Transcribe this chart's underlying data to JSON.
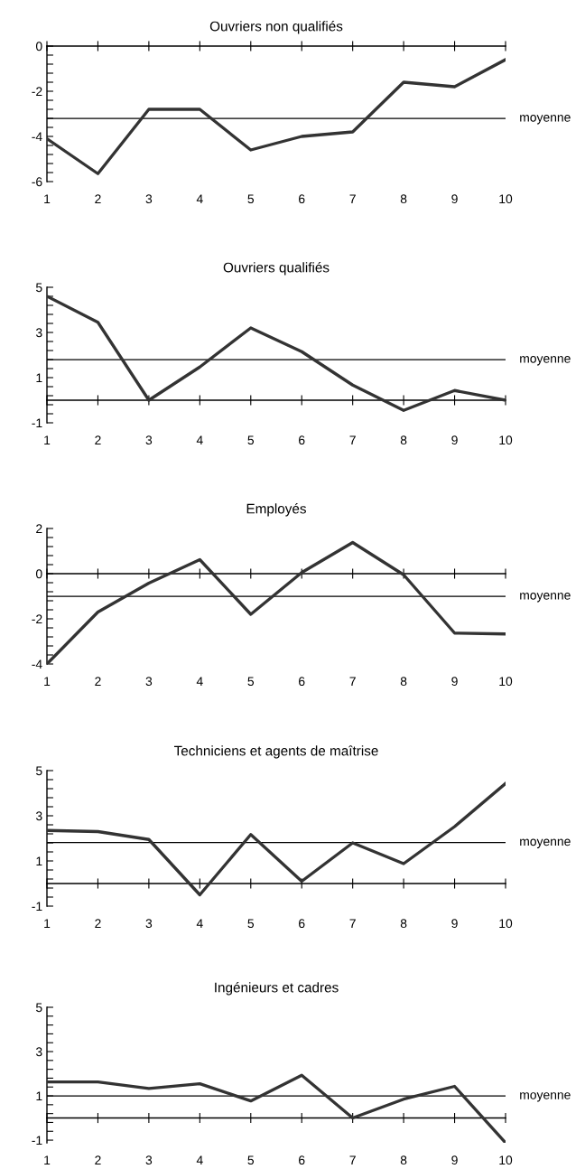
{
  "chart_data": [
    {
      "type": "line",
      "title": "Ouvriers non qualifiés",
      "x": [
        1,
        2,
        3,
        4,
        5,
        6,
        7,
        8,
        9,
        10
      ],
      "values": [
        -4.1,
        -5.65,
        -2.8,
        -2.8,
        -4.6,
        -4.0,
        -3.8,
        -1.6,
        -1.8,
        -0.6
      ],
      "color": "#333333",
      "xlim": [
        1,
        10
      ],
      "xticks": [
        1,
        2,
        3,
        4,
        5,
        6,
        7,
        8,
        9,
        10
      ],
      "ylim": [
        -6,
        0
      ],
      "yticks": [
        -6,
        {
          "value": -5.6,
          "label": null
        },
        {
          "value": -5.2,
          "label": null
        },
        {
          "value": -4.8,
          "label": null
        },
        {
          "value": -4.4,
          "label": null
        },
        -4,
        {
          "value": -3.6,
          "label": null
        },
        {
          "value": -3.2,
          "label": null
        },
        {
          "value": -2.8,
          "label": null
        },
        {
          "value": -2.4,
          "label": null
        },
        -2,
        {
          "value": -1.6,
          "label": null
        },
        {
          "value": -1.2,
          "label": null
        },
        {
          "value": -0.8,
          "label": null
        },
        {
          "value": -0.4,
          "label": null
        },
        0
      ],
      "ref_lines": [
        {
          "axis": "y",
          "value": -3.2,
          "label": "moyenne",
          "color": "#000000"
        }
      ]
    },
    {
      "type": "line",
      "title": "Ouvriers qualifiés",
      "x": [
        1,
        2,
        3,
        4,
        5,
        6,
        7,
        8,
        9,
        10
      ],
      "values": [
        4.6,
        3.45,
        0,
        1.47,
        3.2,
        2.15,
        0.67,
        -0.45,
        0.43,
        0
      ],
      "color": "#333333",
      "xlim": [
        1,
        10
      ],
      "xticks": [
        1,
        2,
        3,
        4,
        5,
        6,
        7,
        8,
        9,
        10
      ],
      "ylim": [
        -1,
        5
      ],
      "yticks": [
        -1,
        {
          "value": -0.6,
          "label": null
        },
        {
          "value": -0.2,
          "label": null
        },
        {
          "value": 0.2,
          "label": null
        },
        {
          "value": 0.6,
          "label": null
        },
        1,
        {
          "value": 1.4,
          "label": null
        },
        {
          "value": 1.8,
          "label": null
        },
        {
          "value": 2.2,
          "label": null
        },
        {
          "value": 2.6,
          "label": null
        },
        3,
        {
          "value": 3.4,
          "label": null
        },
        {
          "value": 3.8,
          "label": null
        },
        {
          "value": 4.2,
          "label": null
        },
        {
          "value": 4.6,
          "label": null
        },
        5
      ],
      "ref_lines": [
        {
          "axis": "y",
          "value": 1.8,
          "label": "moyenne",
          "color": "#000000"
        }
      ]
    },
    {
      "type": "line",
      "title": "Employés",
      "x": [
        1,
        2,
        3,
        4,
        5,
        6,
        7,
        8,
        9,
        10
      ],
      "values": [
        -4,
        -1.7,
        -0.42,
        0.62,
        -1.8,
        0.05,
        1.38,
        -0.05,
        -2.63,
        -2.67
      ],
      "color": "#333333",
      "xlim": [
        1,
        10
      ],
      "xticks": [
        1,
        2,
        3,
        4,
        5,
        6,
        7,
        8,
        9,
        10
      ],
      "ylim": [
        -4,
        2
      ],
      "yticks": [
        -4,
        {
          "value": -3.6,
          "label": null
        },
        {
          "value": -3.2,
          "label": null
        },
        {
          "value": -2.8,
          "label": null
        },
        {
          "value": -2.4,
          "label": null
        },
        -2,
        {
          "value": -1.6,
          "label": null
        },
        {
          "value": -1.2,
          "label": null
        },
        {
          "value": -0.8,
          "label": null
        },
        {
          "value": -0.4,
          "label": null
        },
        0,
        {
          "value": 0.4,
          "label": null
        },
        {
          "value": 0.8,
          "label": null
        },
        {
          "value": 1.2,
          "label": null
        },
        {
          "value": 1.6,
          "label": null
        },
        2
      ],
      "ref_lines": [
        {
          "axis": "y",
          "value": -1,
          "label": "moyenne",
          "color": "#000000"
        }
      ]
    },
    {
      "type": "line",
      "title": "Techniciens et agents de maîtrise",
      "x": [
        1,
        2,
        3,
        4,
        5,
        6,
        7,
        8,
        9,
        10
      ],
      "values": [
        2.35,
        2.3,
        1.95,
        -0.5,
        2.17,
        0.1,
        1.8,
        0.88,
        2.52,
        4.43
      ],
      "color": "#333333",
      "xlim": [
        1,
        10
      ],
      "xticks": [
        1,
        2,
        3,
        4,
        5,
        6,
        7,
        8,
        9,
        10
      ],
      "ylim": [
        -1,
        5
      ],
      "yticks": [
        -1,
        {
          "value": -0.6,
          "label": null
        },
        {
          "value": -0.2,
          "label": null
        },
        {
          "value": 0.2,
          "label": null
        },
        {
          "value": 0.6,
          "label": null
        },
        1,
        {
          "value": 1.4,
          "label": null
        },
        {
          "value": 1.8,
          "label": null
        },
        {
          "value": 2.2,
          "label": null
        },
        {
          "value": 2.6,
          "label": null
        },
        3,
        {
          "value": 3.4,
          "label": null
        },
        {
          "value": 3.8,
          "label": null
        },
        {
          "value": 4.2,
          "label": null
        },
        {
          "value": 4.6,
          "label": null
        },
        5
      ],
      "ref_lines": [
        {
          "axis": "y",
          "value": 1.82,
          "label": "moyenne",
          "color": "#000000"
        }
      ]
    },
    {
      "type": "line",
      "title": "Ingénieurs et cadres",
      "x": [
        1,
        2,
        3,
        4,
        5,
        6,
        7,
        8,
        9,
        10
      ],
      "values": [
        1.63,
        1.63,
        1.33,
        1.55,
        0.77,
        1.93,
        0,
        0.85,
        1.43,
        -1.12
      ],
      "color": "#333333",
      "xlim": [
        1,
        10
      ],
      "xticks": [
        1,
        2,
        3,
        4,
        5,
        6,
        7,
        8,
        9,
        10
      ],
      "ylim": [
        -1.12,
        5
      ],
      "yticks": [
        -1,
        {
          "value": -0.6,
          "label": null
        },
        {
          "value": -0.2,
          "label": null
        },
        {
          "value": 0.2,
          "label": null
        },
        {
          "value": 0.6,
          "label": null
        },
        1,
        {
          "value": 1.4,
          "label": null
        },
        {
          "value": 1.8,
          "label": null
        },
        {
          "value": 2.2,
          "label": null
        },
        {
          "value": 2.6,
          "label": null
        },
        3,
        {
          "value": 3.4,
          "label": null
        },
        {
          "value": 3.8,
          "label": null
        },
        {
          "value": 4.2,
          "label": null
        },
        {
          "value": 4.6,
          "label": null
        },
        5
      ],
      "ref_lines": [
        {
          "axis": "y",
          "value": 1.0,
          "label": "moyenne",
          "color": "#000000"
        }
      ]
    }
  ]
}
